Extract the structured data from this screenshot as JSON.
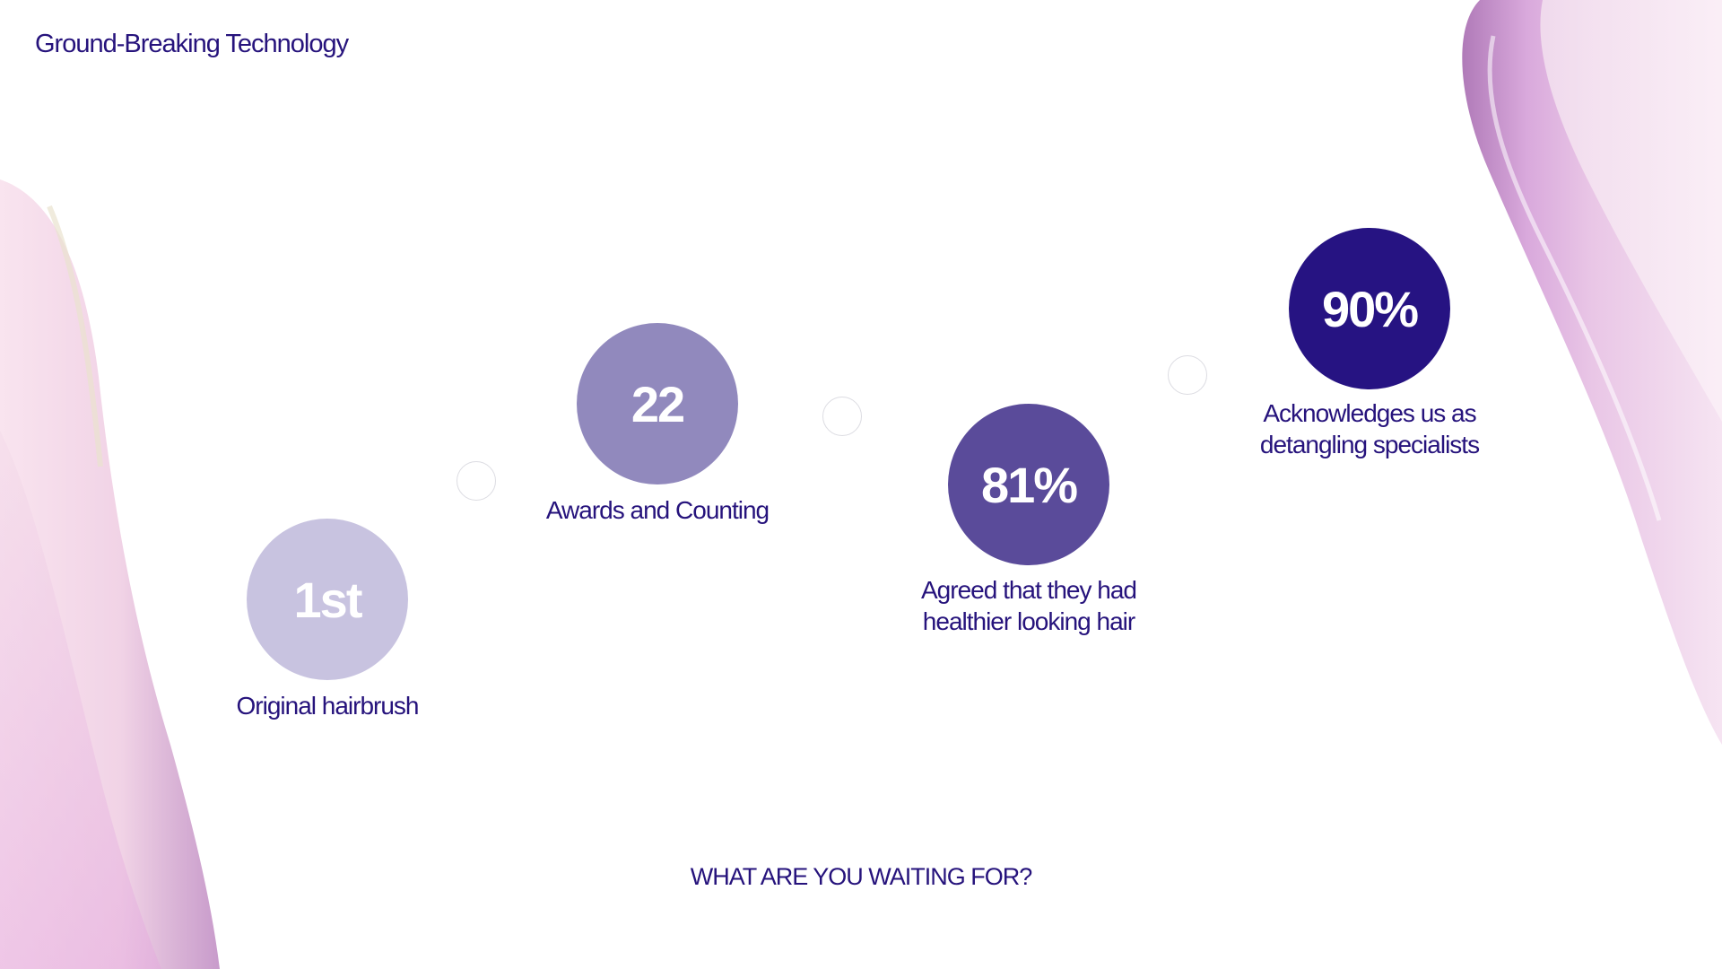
{
  "slide": {
    "title": "Ground-Breaking Technology",
    "cta": "WHAT ARE YOU WAITING FOR?"
  },
  "stats": [
    {
      "value": "1st",
      "label": "Original hairbrush",
      "color": "#c8c3e0"
    },
    {
      "value": "22",
      "label": "Awards and Counting",
      "color": "#9189bd"
    },
    {
      "value": "81%",
      "label": "Agreed that they had healthier looking hair",
      "color": "#5a4b9a"
    },
    {
      "value": "90%",
      "label": "Acknowledges us as detangling specialists",
      "color": "#261382"
    }
  ],
  "colors": {
    "text": "#26137c",
    "connector_border": "#dcdce2",
    "decor_pink": "#f0d6ea",
    "decor_purple": "#c79bd0"
  }
}
